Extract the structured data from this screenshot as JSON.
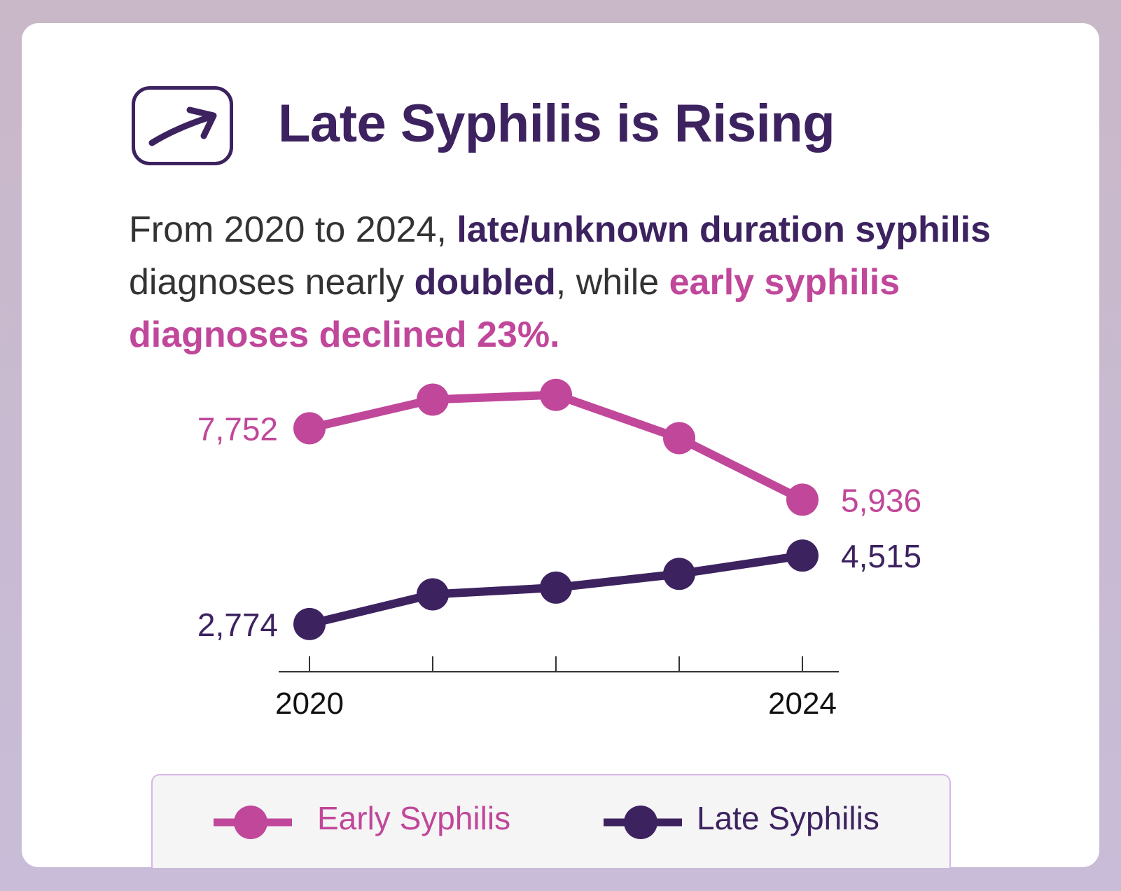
{
  "header": {
    "title": "Late Syphilis is Rising",
    "icon": "trending-up-arrow-icon"
  },
  "description": {
    "part1": "From 2020 to 2024, ",
    "part2": "late/unknown duration syphilis",
    "part3": " diagnoses nearly ",
    "part4": "doubled",
    "part5": ", while ",
    "part6": "early syphilis diagnoses declined 23%."
  },
  "colors": {
    "early": "#c0479a",
    "late": "#3d2260",
    "axis": "#333333"
  },
  "chart_data": {
    "type": "line",
    "x": [
      2020,
      2021,
      2022,
      2023,
      2024
    ],
    "tick_labels": [
      "2020",
      "",
      "",
      "",
      "2024"
    ],
    "series": [
      {
        "name": "Early Syphilis",
        "values": [
          7752,
          8480,
          8600,
          7500,
          5936
        ],
        "labels": [
          "7,752",
          "",
          "",
          "",
          "5,936"
        ]
      },
      {
        "name": "Late Syphilis",
        "values": [
          2774,
          3530,
          3700,
          4050,
          4515
        ],
        "labels": [
          "2,774",
          "",
          "",
          "",
          "4,515"
        ]
      }
    ],
    "ylim": [
      1900,
      9200
    ],
    "grid": false,
    "legend": "bottom"
  }
}
